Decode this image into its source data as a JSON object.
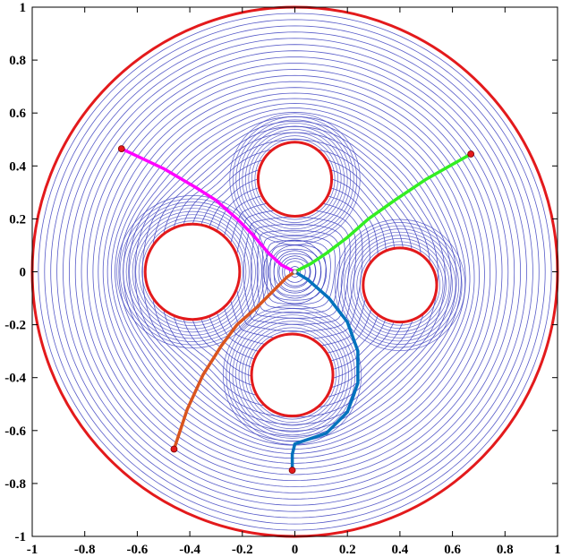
{
  "chart_data": {
    "type": "line",
    "title": "",
    "xlabel": "",
    "ylabel": "",
    "xlim": [
      -1,
      1
    ],
    "ylim": [
      -1,
      1
    ],
    "grid": false,
    "x_ticks": [
      "-1",
      "-0.8",
      "-0.6",
      "-0.4",
      "-0.2",
      "0",
      "0.2",
      "0.4",
      "0.6",
      "0.8",
      "1"
    ],
    "y_ticks": [
      "1",
      "0.8",
      "0.6",
      "0.4",
      "0.2",
      "0",
      "-0.2",
      "-0.4",
      "-0.6",
      "-0.8",
      "-1"
    ],
    "boundary": {
      "center": [
        0,
        0
      ],
      "radius": 1,
      "color": "#e31a1c"
    },
    "obstacles": [
      {
        "center": [
          0.0,
          0.35
        ],
        "radius": 0.14
      },
      {
        "center": [
          -0.39,
          0.0
        ],
        "radius": 0.18
      },
      {
        "center": [
          0.4,
          -0.05
        ],
        "radius": 0.14
      },
      {
        "center": [
          -0.01,
          -0.39
        ],
        "radius": 0.155
      }
    ],
    "goal": [
      0,
      0
    ],
    "contour_color": "#3b3fbf",
    "contour_levels": 40,
    "series": [
      {
        "color": "#ff00ff",
        "start": [
          -0.66,
          0.465
        ],
        "x": [
          -0.66,
          -0.5,
          -0.38,
          -0.3,
          -0.22,
          -0.16,
          -0.1,
          -0.05,
          0.0
        ],
        "y": [
          0.465,
          0.39,
          0.32,
          0.27,
          0.2,
          0.14,
          0.07,
          0.025,
          0.0
        ]
      },
      {
        "color": "#33ee22",
        "start": [
          0.67,
          0.445
        ],
        "x": [
          0.67,
          0.5,
          0.38,
          0.28,
          0.2,
          0.12,
          0.06,
          0.02,
          0.0
        ],
        "y": [
          0.445,
          0.35,
          0.27,
          0.2,
          0.13,
          0.07,
          0.03,
          0.01,
          0.0
        ]
      },
      {
        "color": "#d9541e",
        "start": [
          -0.46,
          -0.67
        ],
        "x": [
          -0.46,
          -0.41,
          -0.35,
          -0.28,
          -0.22,
          -0.14,
          -0.07,
          -0.03,
          0.0
        ],
        "y": [
          -0.67,
          -0.52,
          -0.39,
          -0.28,
          -0.2,
          -0.13,
          -0.06,
          -0.02,
          0.0
        ]
      },
      {
        "color": "#0072bd",
        "start": [
          -0.01,
          -0.75
        ],
        "x": [
          -0.01,
          -0.01,
          0.0,
          0.12,
          0.2,
          0.24,
          0.24,
          0.2,
          0.13,
          0.05,
          0.0
        ],
        "y": [
          -0.75,
          -0.69,
          -0.65,
          -0.61,
          -0.53,
          -0.42,
          -0.3,
          -0.19,
          -0.1,
          -0.03,
          0.0
        ]
      }
    ],
    "start_marker_color": "#e31a1c"
  }
}
